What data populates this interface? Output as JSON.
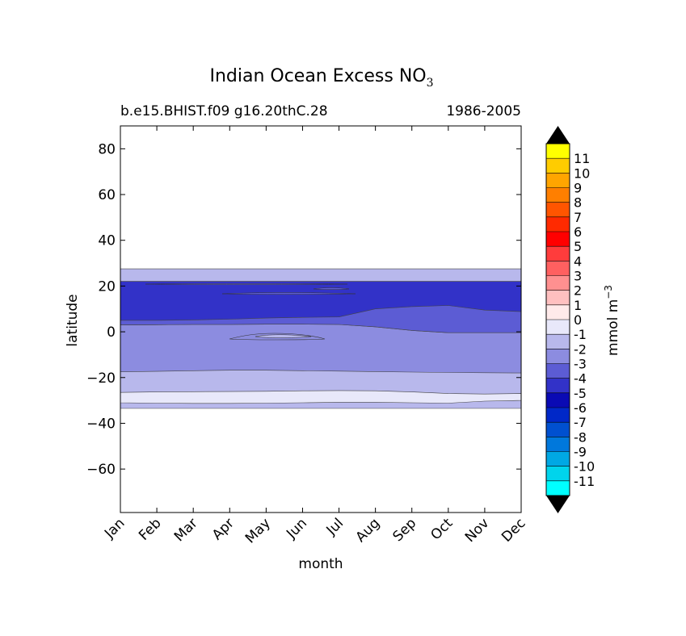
{
  "chart_data": {
    "type": "contour",
    "title": "Indian Ocean Excess NO",
    "title_subscript": "3",
    "subtitle_left": "b.e15.BHIST.f09 g16.20thC.28",
    "subtitle_right": "1986-2005",
    "xlabel": "month",
    "ylabel": "latitude",
    "x_categories": [
      "Jan",
      "Feb",
      "Mar",
      "Apr",
      "May",
      "Jun",
      "Jul",
      "Aug",
      "Sep",
      "Oct",
      "Nov",
      "Dec"
    ],
    "x_index_range": [
      0,
      11
    ],
    "ylim": [
      -79,
      90
    ],
    "y_ticks": [
      80,
      60,
      40,
      20,
      0,
      -20,
      -40,
      -60
    ],
    "y_tick_labels": [
      "80",
      "60",
      "40",
      "20",
      "0",
      "−20",
      "−40",
      "−60"
    ],
    "colorbar": {
      "label": "mmol m",
      "label_superscript": "−3",
      "ticks": [
        "11",
        "10",
        "9",
        "8",
        "7",
        "6",
        "5",
        "4",
        "3",
        "2",
        "1",
        "0",
        "-1",
        "-2",
        "-3",
        "-4",
        "-5",
        "-6",
        "-7",
        "-8",
        "-9",
        "-10",
        "-11"
      ],
      "colors_top_to_bottom": [
        "#ffff00",
        "#ffcc00",
        "#ffa500",
        "#ff7f00",
        "#ff5500",
        "#ff2a00",
        "#ff0000",
        "#ff3c3c",
        "#ff6060",
        "#ff9090",
        "#ffc0c0",
        "#ffeaea",
        "#e8e8fa",
        "#b8b8ec",
        "#8c8ce0",
        "#5c5cd4",
        "#3232c8",
        "#0a0ab4",
        "#0028c8",
        "#0050d0",
        "#0078dc",
        "#00a8e4",
        "#00d4ec",
        "#00ffff"
      ],
      "extend_color": "#000000"
    },
    "fields": [
      {
        "name": "band-south-outer",
        "value_range": "-2 to -1",
        "color": "#b8b8ec",
        "months": [
          0,
          11
        ],
        "lat_south": [
          -33.5,
          -33.5
        ],
        "lat_north": [
          27.5,
          27.5
        ]
      },
      {
        "name": "band-south-light",
        "value_range": "-1 to 0",
        "color": "#e8e8fa",
        "months": [
          0,
          1,
          2,
          3,
          4,
          5,
          6,
          7,
          8,
          9,
          10,
          11
        ],
        "lat_south": [
          -31,
          -31.2,
          -31.3,
          -31.3,
          -31.2,
          -31,
          -30.8,
          -30.8,
          -31,
          -31.2,
          -30.3,
          -30
        ],
        "lat_north": [
          -26.5,
          -26.3,
          -26.2,
          -26.1,
          -26,
          -25.8,
          -25.7,
          -25.8,
          -26.3,
          -27,
          -27.2,
          -27
        ]
      },
      {
        "name": "band-central",
        "value_range": "-3 to -2",
        "color": "#8c8ce0",
        "months": [
          0,
          1,
          2,
          3,
          4,
          5,
          6,
          7,
          8,
          9,
          10,
          11
        ],
        "lat_south": [
          -17.5,
          -17.3,
          -17,
          -16.8,
          -16.8,
          -17,
          -17.2,
          -17.4,
          -17.6,
          -17.8,
          -17.9,
          -18
        ],
        "lat_north": [
          3,
          3.1,
          3.2,
          3.2,
          3.3,
          3.3,
          3.2,
          2.2,
          0.6,
          -0.4,
          -0.4,
          -0.4
        ]
      },
      {
        "name": "band-north-mid",
        "value_range": "-4 to -3",
        "color": "#5c5cd4",
        "months": [
          0,
          1,
          2,
          3,
          4,
          5,
          6,
          7,
          8,
          9,
          10,
          11
        ],
        "lat_south": [
          3,
          3.1,
          3.2,
          3.2,
          3.3,
          3.3,
          3.2,
          2.2,
          0.6,
          -0.4,
          -0.4,
          -0.4
        ],
        "lat_north": [
          22,
          22,
          22,
          22,
          22,
          22,
          22,
          22,
          22,
          22,
          22,
          22
        ]
      },
      {
        "name": "band-north-deep",
        "value_range": "-5 to -4",
        "color": "#3232c8",
        "months": [
          0,
          1,
          2,
          3,
          4,
          5,
          6,
          7,
          8,
          9,
          10,
          11
        ],
        "lat_south": [
          5,
          5,
          5.2,
          5.5,
          6,
          6.3,
          6.5,
          10,
          11,
          11.5,
          9.5,
          8.8
        ],
        "lat_north": [
          22,
          22,
          22,
          22,
          22,
          22,
          22,
          22,
          22,
          22,
          22,
          22
        ]
      }
    ]
  }
}
